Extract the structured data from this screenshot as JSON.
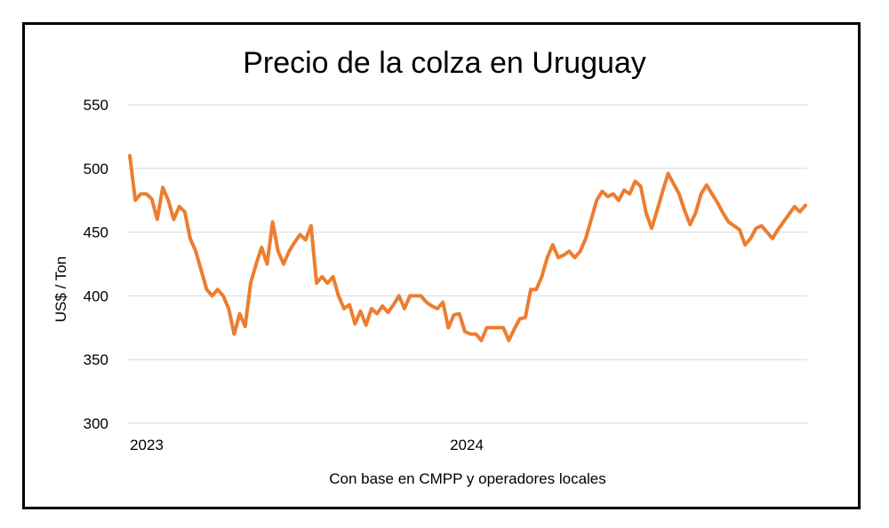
{
  "chart_data": {
    "type": "line",
    "title": "Precio de la colza en Uruguay",
    "xlabel": "Con base en CMPP y operadores locales",
    "ylabel": "US$ / Ton",
    "ylim": [
      300,
      550
    ],
    "yticks": [
      300,
      350,
      400,
      450,
      500,
      550
    ],
    "xtick_labels": [
      "2023",
      "2024"
    ],
    "grid": "horizontal",
    "legend": "none",
    "line_color": "#ED7D31",
    "series": [
      {
        "values": [
          510,
          475,
          480,
          480,
          476,
          460,
          485,
          475,
          460,
          470,
          466,
          445,
          435,
          420,
          405,
          400,
          405,
          400,
          390,
          370,
          386,
          376,
          410,
          425,
          438,
          425,
          458,
          435,
          425,
          435,
          442,
          448,
          444,
          455,
          410,
          415,
          410,
          415,
          400,
          390,
          393,
          378,
          388,
          377,
          390,
          386,
          392,
          387,
          393,
          400,
          390,
          400,
          400,
          400,
          395,
          392,
          390,
          395,
          375,
          385,
          386,
          372,
          370,
          370,
          365,
          375,
          375,
          375,
          375,
          365,
          374,
          382,
          383,
          405,
          405,
          415,
          430,
          440,
          430,
          432,
          435,
          430,
          435,
          445,
          460,
          475,
          482,
          478,
          480,
          475,
          483,
          480,
          490,
          486,
          465,
          453,
          467,
          482,
          496,
          488,
          480,
          467,
          456,
          465,
          480,
          487,
          480,
          473,
          465,
          458,
          455,
          452,
          440,
          445,
          453,
          455,
          450,
          445,
          452,
          458,
          464,
          470,
          466,
          471
        ]
      }
    ]
  }
}
